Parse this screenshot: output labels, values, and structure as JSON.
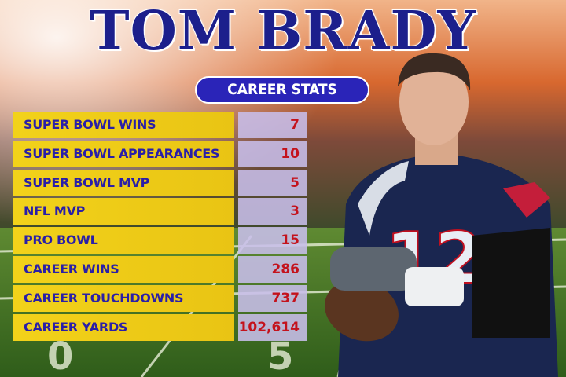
{
  "header": {
    "title": "TOM BRADY",
    "subtitle": "CAREER STATS"
  },
  "table": {
    "rows": [
      [
        "SUPER BOWL WINS",
        7
      ],
      [
        "SUPER BOWL APPEARANCES",
        10
      ],
      [
        "SUPER BOWL MVP",
        5
      ],
      [
        "NFL MVP",
        3
      ],
      [
        "PRO BOWL",
        15
      ],
      [
        "CAREER WINS",
        286
      ],
      [
        "CAREER TOUCHDOWNS",
        737
      ],
      [
        "CAREER YARDS",
        "102,614"
      ]
    ]
  }
}
